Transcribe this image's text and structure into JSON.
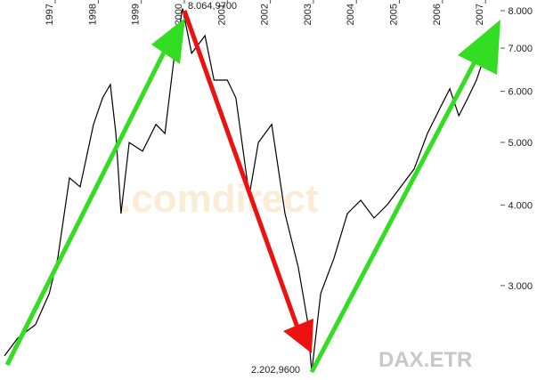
{
  "chart_data": {
    "type": "line",
    "y_scale": "log",
    "xlim": [
      1995.82,
      2007.41
    ],
    "xticks": [
      1997,
      1998,
      1999,
      2000,
      2001,
      2002,
      2003,
      2004,
      2005,
      2006,
      2007
    ],
    "ylim": [
      2190,
      8000
    ],
    "yticks": [
      {
        "value": 3000,
        "label": "3.000"
      },
      {
        "value": 4000,
        "label": "4.000"
      },
      {
        "value": 5000,
        "label": "5.000"
      },
      {
        "value": 6000,
        "label": "6.000"
      },
      {
        "value": 7000,
        "label": "7.000"
      },
      {
        "value": 8000,
        "label": "8.000"
      }
    ],
    "series": [
      {
        "color": "#000000",
        "x": [
          1995.82,
          1996.13,
          1996.54,
          1996.86,
          1997.06,
          1997.33,
          1997.58,
          1997.89,
          1998.1,
          1998.28,
          1998.41,
          1998.53,
          1998.72,
          1999.03,
          1999.34,
          1999.55,
          1999.75,
          1999.96,
          2000.17,
          2000.48,
          2000.69,
          2001.0,
          2001.2,
          2001.51,
          2001.72,
          2002.03,
          2002.34,
          2002.65,
          2002.86,
          2002.96,
          2003.17,
          2003.48,
          2003.79,
          2004.1,
          2004.41,
          2004.72,
          2005.03,
          2005.34,
          2005.65,
          2005.96,
          2006.17,
          2006.38,
          2006.59,
          2006.79,
          2007.0,
          2007.15,
          2007.27
        ],
        "values": [
          2334,
          2488,
          2609,
          2915,
          3310,
          4405,
          4268,
          5332,
          5860,
          6146,
          5164,
          3880,
          4998,
          4845,
          5332,
          5164,
          6657,
          8064.97,
          6871,
          7318,
          6245,
          6245,
          5860,
          4135,
          4998,
          5332,
          3880,
          3200,
          2651,
          2202.96,
          2915,
          3310,
          3880,
          4068,
          3818,
          4005,
          4268,
          4547,
          5164,
          5680,
          6054,
          5500,
          5860,
          6245,
          6871,
          6554,
          6769
        ]
      }
    ],
    "annotations": [
      "8.064,9700",
      "2.202,9600",
      ".comdirect",
      "DAX.ETR"
    ]
  }
}
